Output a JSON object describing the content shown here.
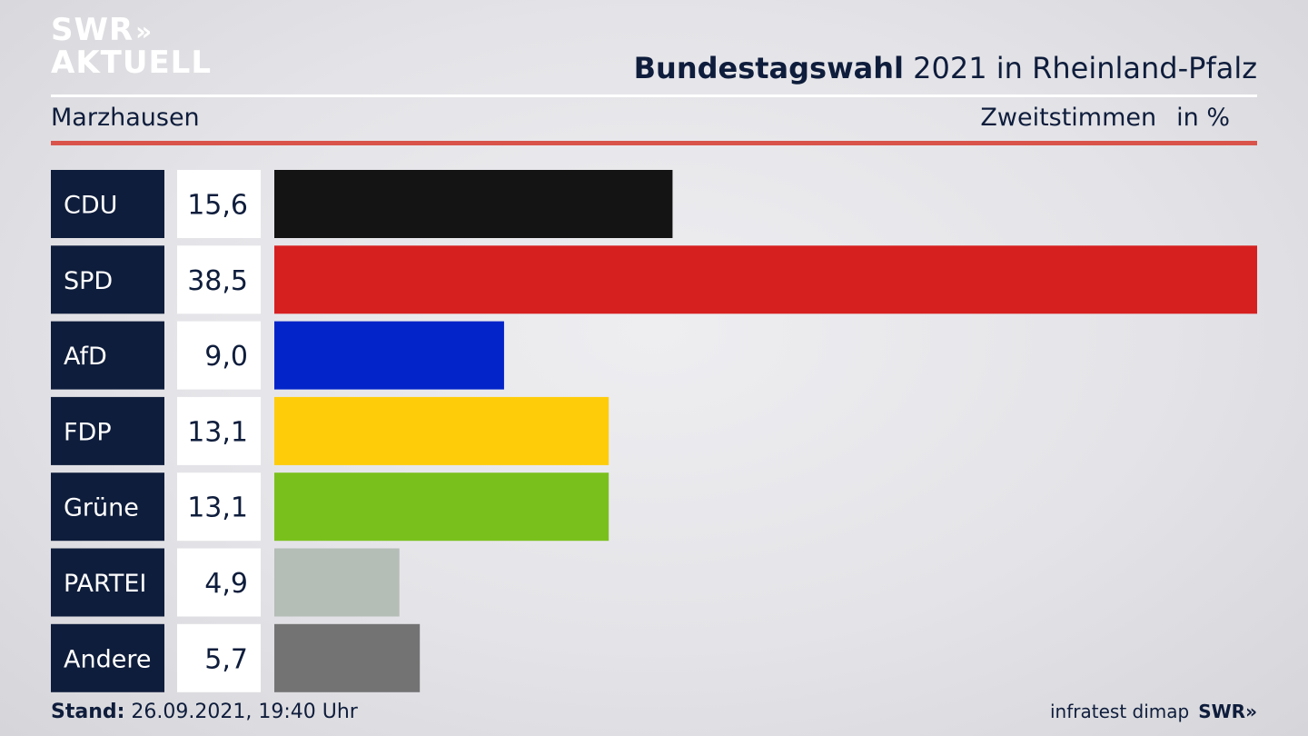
{
  "logo": {
    "line1": "SWR",
    "line2": "AKTUELL",
    "chevrons": "»"
  },
  "header": {
    "title_bold": "Bundestagswahl",
    "title_rest": " 2021 in Rheinland-Pfalz",
    "region": "Marzhausen",
    "metric": "Zweitstimmen",
    "unit": "in %"
  },
  "footer": {
    "stand_label": "Stand:",
    "stand_value": " 26.09.2021, 19:40 Uhr",
    "source": "infratest dimap",
    "brand": "SWR»"
  },
  "colors": {
    "label_bg": "#0f1d3c",
    "accent_rule": "#d9534a"
  },
  "chart_data": {
    "type": "bar",
    "orientation": "horizontal",
    "categories": [
      "CDU",
      "SPD",
      "AfD",
      "FDP",
      "Grüne",
      "PARTEI",
      "Andere"
    ],
    "values": [
      15.6,
      38.5,
      9.0,
      13.1,
      13.1,
      4.9,
      5.7
    ],
    "value_labels": [
      "15,6",
      "38,5",
      "9,0",
      "13,1",
      "13,1",
      "4,9",
      "5,7"
    ],
    "bar_colors": [
      "#141414",
      "#d62020",
      "#0324c8",
      "#ffcc0a",
      "#7ac01c",
      "#b4bdb6",
      "#737374"
    ],
    "xlim": [
      0,
      38.5
    ]
  }
}
